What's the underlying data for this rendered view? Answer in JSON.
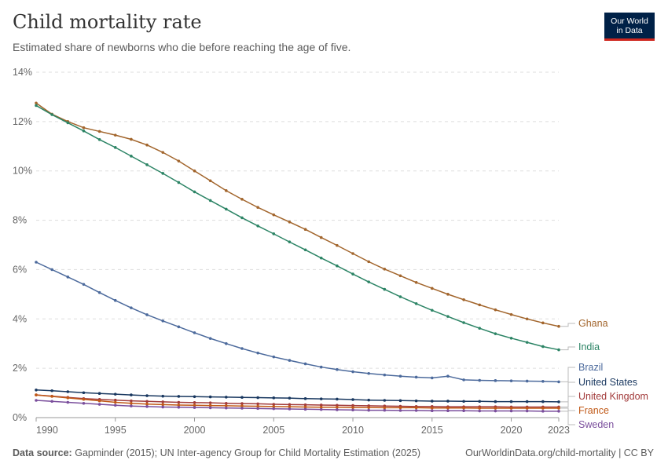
{
  "header": {
    "title": "Child mortality rate",
    "subtitle": "Estimated share of newborns who die before reaching the age of five.",
    "logo_line1": "Our World",
    "logo_line2": "in Data"
  },
  "footer": {
    "source_label": "Data source:",
    "source_text": "Gapminder (2015); UN Inter-agency Group for Child Mortality Estimation (2025)",
    "right_text": "OurWorldinData.org/child-mortality | CC BY"
  },
  "colors": {
    "Ghana": "#a2652c",
    "India": "#2c8465",
    "Brazil": "#4c6a9c",
    "United States": "#18375f",
    "United Kingdom": "#a23b3b",
    "France": "#c05917",
    "Sweden": "#7a4e9c"
  },
  "chart_data": {
    "type": "line",
    "title": "Child mortality rate",
    "subtitle": "Estimated share of newborns who die before reaching the age of five.",
    "y_unit": "%",
    "xlim": [
      1990,
      2023
    ],
    "ylim": [
      0,
      14
    ],
    "y_ticks": [
      0,
      2,
      4,
      6,
      8,
      10,
      12,
      14
    ],
    "y_tick_labels": [
      "0%",
      "2%",
      "4%",
      "6%",
      "8%",
      "10%",
      "12%",
      "14%"
    ],
    "x_ticks": [
      1990,
      1995,
      2000,
      2005,
      2010,
      2015,
      2020,
      2023
    ],
    "x_tick_labels": [
      "1990",
      "1995",
      "2000",
      "2005",
      "2010",
      "2015",
      "2020",
      "2023"
    ],
    "grid": "horizontal dashed",
    "legend": "line-end labels on the right",
    "x": [
      1990,
      1991,
      1992,
      1993,
      1994,
      1995,
      1996,
      1997,
      1998,
      1999,
      2000,
      2001,
      2002,
      2003,
      2004,
      2005,
      2006,
      2007,
      2008,
      2009,
      2010,
      2011,
      2012,
      2013,
      2014,
      2015,
      2016,
      2017,
      2018,
      2019,
      2020,
      2021,
      2022,
      2023
    ],
    "series": [
      {
        "name": "Ghana",
        "values": [
          12.75,
          12.3,
          12.0,
          11.75,
          11.6,
          11.45,
          11.28,
          11.05,
          10.75,
          10.4,
          10.0,
          9.6,
          9.2,
          8.85,
          8.52,
          8.22,
          7.93,
          7.63,
          7.3,
          6.98,
          6.65,
          6.32,
          6.02,
          5.75,
          5.48,
          5.24,
          5.0,
          4.78,
          4.57,
          4.37,
          4.18,
          4.0,
          3.84,
          3.7
        ]
      },
      {
        "name": "India",
        "values": [
          12.65,
          12.28,
          11.95,
          11.62,
          11.27,
          10.95,
          10.6,
          10.25,
          9.9,
          9.53,
          9.15,
          8.8,
          8.45,
          8.1,
          7.77,
          7.45,
          7.12,
          6.8,
          6.47,
          6.15,
          5.82,
          5.5,
          5.2,
          4.9,
          4.62,
          4.35,
          4.1,
          3.85,
          3.62,
          3.4,
          3.22,
          3.05,
          2.88,
          2.75
        ]
      },
      {
        "name": "Brazil",
        "values": [
          6.3,
          6.0,
          5.7,
          5.4,
          5.07,
          4.75,
          4.45,
          4.17,
          3.92,
          3.68,
          3.44,
          3.21,
          3.0,
          2.8,
          2.62,
          2.46,
          2.32,
          2.18,
          2.05,
          1.95,
          1.86,
          1.79,
          1.73,
          1.68,
          1.64,
          1.61,
          1.68,
          1.53,
          1.51,
          1.5,
          1.49,
          1.48,
          1.47,
          1.45
        ]
      },
      {
        "name": "United States",
        "values": [
          1.12,
          1.09,
          1.05,
          1.01,
          0.98,
          0.95,
          0.92,
          0.89,
          0.87,
          0.86,
          0.85,
          0.84,
          0.83,
          0.82,
          0.81,
          0.8,
          0.79,
          0.77,
          0.76,
          0.75,
          0.73,
          0.71,
          0.7,
          0.69,
          0.68,
          0.67,
          0.67,
          0.66,
          0.66,
          0.65,
          0.65,
          0.65,
          0.65,
          0.64
        ]
      },
      {
        "name": "United Kingdom",
        "values": [
          0.92,
          0.87,
          0.82,
          0.77,
          0.74,
          0.71,
          0.68,
          0.66,
          0.64,
          0.62,
          0.61,
          0.6,
          0.58,
          0.57,
          0.56,
          0.54,
          0.53,
          0.52,
          0.51,
          0.5,
          0.49,
          0.48,
          0.47,
          0.46,
          0.45,
          0.45,
          0.44,
          0.44,
          0.44,
          0.44,
          0.43,
          0.43,
          0.43,
          0.43
        ]
      },
      {
        "name": "France",
        "values": [
          0.92,
          0.86,
          0.8,
          0.74,
          0.68,
          0.62,
          0.58,
          0.55,
          0.53,
          0.51,
          0.5,
          0.49,
          0.48,
          0.47,
          0.46,
          0.45,
          0.44,
          0.43,
          0.42,
          0.42,
          0.41,
          0.41,
          0.4,
          0.4,
          0.4,
          0.39,
          0.39,
          0.39,
          0.38,
          0.38,
          0.38,
          0.38,
          0.38,
          0.38
        ]
      },
      {
        "name": "Sweden",
        "values": [
          0.7,
          0.66,
          0.62,
          0.58,
          0.54,
          0.5,
          0.47,
          0.45,
          0.43,
          0.42,
          0.41,
          0.4,
          0.39,
          0.38,
          0.37,
          0.36,
          0.35,
          0.34,
          0.33,
          0.32,
          0.31,
          0.3,
          0.3,
          0.29,
          0.29,
          0.28,
          0.28,
          0.28,
          0.27,
          0.27,
          0.27,
          0.27,
          0.26,
          0.26
        ]
      }
    ],
    "end_labels": [
      "Ghana",
      "India",
      "Brazil",
      "United States",
      "United Kingdom",
      "France",
      "Sweden"
    ]
  }
}
